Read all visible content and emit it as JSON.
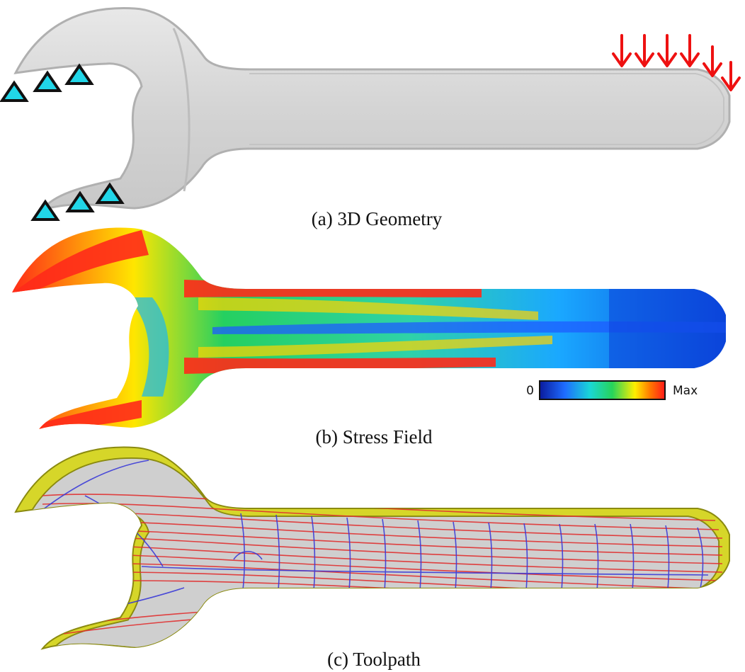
{
  "panels": [
    {
      "id": "a",
      "caption": "(a) 3D Geometry"
    },
    {
      "id": "b",
      "caption": "(b) Stress Field"
    },
    {
      "id": "c",
      "caption": "(c) Toolpath"
    }
  ],
  "colorbar": {
    "min_label": "0",
    "max_label": "Max",
    "stops": [
      "#0a1a9c",
      "#1e6cff",
      "#1ad6d6",
      "#27d45a",
      "#ffee00",
      "#ff7a00",
      "#ff1a1a"
    ]
  },
  "geometry": {
    "body_color": "#d9d9d9",
    "outline_color": "#b8b8b8",
    "support_icon": "triangle-icon",
    "support_color": "#21d6e8",
    "load_icon": "arrow-down-icon",
    "load_color": "#ee1111"
  },
  "toolpath": {
    "contour_color": "#d6d629",
    "path_color_1": "#e03030",
    "path_color_2": "#3a3ad8"
  }
}
